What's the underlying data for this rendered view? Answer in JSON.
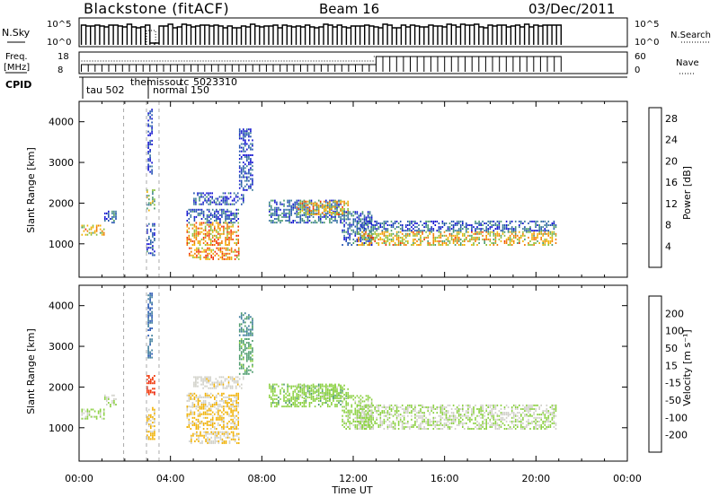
{
  "header": {
    "station": "Blackstone (fitACF)",
    "beam": "Beam 16",
    "date": "03/Dec/2011"
  },
  "nsky_panel": {
    "label": "N.Sky",
    "ticks": [
      "10^5",
      "10^0"
    ],
    "right_ticks": [
      "10^5",
      "10^0"
    ],
    "right_label": "N.Search"
  },
  "freq_panel": {
    "label_top": "Freq.",
    "label_bottom": "[MHz]",
    "ticks": [
      "18",
      "8"
    ],
    "right_ticks": [
      "60",
      "0"
    ],
    "right_label": "Nave"
  },
  "cpid_panel": {
    "label": "CPID",
    "programs": [
      "tau 502",
      "themis",
      "sou",
      "tc",
      "5023310",
      "normal 150"
    ]
  },
  "power_panel": {
    "ylabel": "Slant Range [km]",
    "yticks": [
      "1000",
      "2000",
      "3000",
      "4000"
    ],
    "colorbar_label": "Power [dB]",
    "colorbar_ticks": [
      "4",
      "8",
      "12",
      "16",
      "20",
      "24",
      "28"
    ]
  },
  "velocity_panel": {
    "ylabel": "Slant Range [km]",
    "yticks": [
      "1000",
      "2000",
      "3000",
      "4000"
    ],
    "colorbar_label": "Velocity [m s⁻¹]",
    "colorbar_ticks": [
      "200",
      "100",
      "50",
      "15",
      "-15",
      "-50",
      "-100",
      "-200"
    ]
  },
  "xaxis": {
    "label": "Time UT",
    "ticks": [
      "00:00",
      "04:00",
      "08:00",
      "12:00",
      "16:00",
      "20:00",
      "00:00"
    ]
  },
  "chart_data": {
    "type": "heatmap",
    "xlim_hours": [
      0,
      24
    ],
    "ylim_km": [
      180,
      4500
    ],
    "power_scale": [
      0,
      30
    ],
    "velocity_scale": [
      -250,
      250
    ],
    "colors": {
      "power": [
        "#1010d0",
        "#2050b0",
        "#3a7a9a",
        "#4a9a6a",
        "#8abf3a",
        "#f0b000",
        "#f07a00",
        "#f03000",
        "#e00000"
      ],
      "velocity": [
        "#e00000",
        "#f03000",
        "#f07a00",
        "#f0b000",
        "#d0d0c8",
        "#8ad040",
        "#4a9a6a",
        "#3a7a9a",
        "#2050b0",
        "#1010d0"
      ]
    },
    "regions": [
      {
        "t0": 0.1,
        "t1": 1.1,
        "r0": 1200,
        "r1": 1450,
        "power": 18,
        "velocity": 0
      },
      {
        "t0": 1.1,
        "t1": 1.6,
        "r0": 1500,
        "r1": 1800,
        "power": 6,
        "velocity": 0
      },
      {
        "t0": 2.95,
        "t1": 3.3,
        "r0": 700,
        "r1": 1500,
        "power": 5,
        "velocity": -60
      },
      {
        "t0": 2.95,
        "t1": 3.3,
        "r0": 1800,
        "r1": 2300,
        "power": 12,
        "velocity": -180
      },
      {
        "t0": 3.0,
        "t1": 3.2,
        "r0": 2700,
        "r1": 4300,
        "power": 3,
        "velocity": 150
      },
      {
        "t0": 4.7,
        "t1": 7.0,
        "r0": 950,
        "r1": 1500,
        "power": 20,
        "velocity": -60
      },
      {
        "t0": 4.7,
        "t1": 7.0,
        "r0": 1500,
        "r1": 1850,
        "power": 6,
        "velocity": -50
      },
      {
        "t0": 5.0,
        "t1": 7.2,
        "r0": 1950,
        "r1": 2250,
        "power": 5,
        "velocity": -30
      },
      {
        "t0": 7.0,
        "t1": 7.6,
        "r0": 2300,
        "r1": 3200,
        "power": 4,
        "velocity": 70
      },
      {
        "t0": 7.0,
        "t1": 7.6,
        "r0": 3250,
        "r1": 3800,
        "power": 4,
        "velocity": 110
      },
      {
        "t0": 8.3,
        "t1": 11.5,
        "r0": 1500,
        "r1": 2050,
        "power": 7,
        "velocity": 30
      },
      {
        "t0": 9.5,
        "t1": 11.8,
        "r0": 1700,
        "r1": 2050,
        "power": 18,
        "velocity": 25
      },
      {
        "t0": 11.5,
        "t1": 12.8,
        "r0": 950,
        "r1": 1800,
        "power": 6,
        "velocity": 20
      },
      {
        "t0": 12.2,
        "t1": 20.9,
        "r0": 950,
        "r1": 1300,
        "power": 18,
        "velocity": 0
      },
      {
        "t0": 12.2,
        "t1": 20.9,
        "r0": 1300,
        "r1": 1550,
        "power": 6,
        "velocity": 0
      },
      {
        "t0": 4.8,
        "t1": 7.0,
        "r0": 600,
        "r1": 900,
        "power": 20,
        "velocity": -50
      }
    ]
  }
}
